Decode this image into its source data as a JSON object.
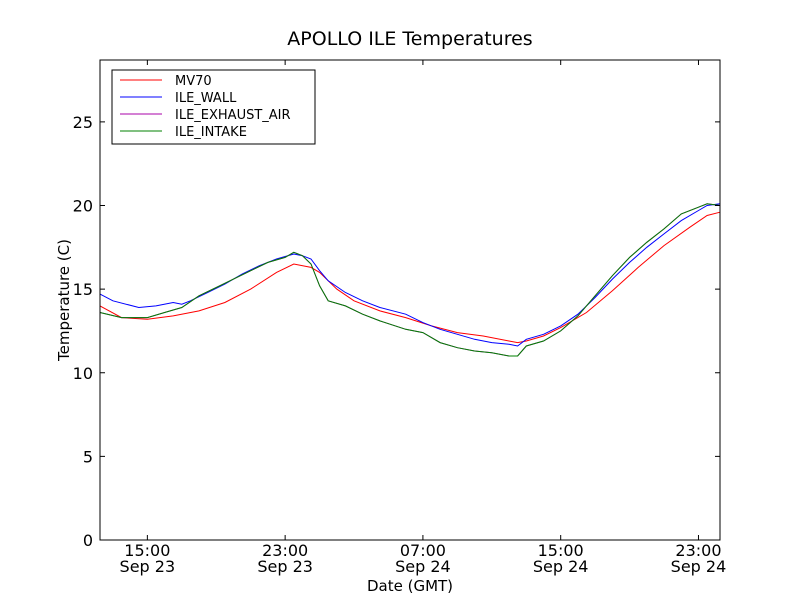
{
  "chart_data": {
    "type": "line",
    "title": "APOLLO ILE Temperatures",
    "xlabel": "Date (GMT)",
    "ylabel": "Temperature (C)",
    "xlim_hours": [
      12.25,
      48.25
    ],
    "ylim": [
      0,
      28.7
    ],
    "yticks": [
      0,
      5,
      10,
      15,
      20,
      25
    ],
    "xticks": [
      {
        "hour": 15,
        "time": "15:00",
        "date": "Sep 23"
      },
      {
        "hour": 23,
        "time": "23:00",
        "date": "Sep 23"
      },
      {
        "hour": 31,
        "time": "07:00",
        "date": "Sep 24"
      },
      {
        "hour": 39,
        "time": "15:00",
        "date": "Sep 24"
      },
      {
        "hour": 47,
        "time": "23:00",
        "date": "Sep 24"
      }
    ],
    "grid": false,
    "legend_position": "top-left",
    "series": [
      {
        "name": "MV70",
        "color": "#ff0000",
        "points": [
          [
            12.25,
            14.0
          ],
          [
            13.5,
            13.3
          ],
          [
            15.0,
            13.2
          ],
          [
            16.5,
            13.4
          ],
          [
            18.0,
            13.7
          ],
          [
            19.5,
            14.2
          ],
          [
            21.0,
            15.0
          ],
          [
            22.5,
            16.0
          ],
          [
            23.5,
            16.5
          ],
          [
            24.5,
            16.3
          ],
          [
            25.0,
            16.0
          ],
          [
            26.0,
            15.0
          ],
          [
            27.0,
            14.3
          ],
          [
            28.5,
            13.7
          ],
          [
            30.0,
            13.3
          ],
          [
            31.5,
            12.8
          ],
          [
            33.0,
            12.4
          ],
          [
            34.5,
            12.2
          ],
          [
            36.0,
            11.9
          ],
          [
            36.5,
            11.8
          ],
          [
            37.0,
            11.9
          ],
          [
            38.0,
            12.2
          ],
          [
            39.0,
            12.7
          ],
          [
            40.5,
            13.6
          ],
          [
            42.0,
            14.9
          ],
          [
            43.5,
            16.3
          ],
          [
            45.0,
            17.6
          ],
          [
            46.5,
            18.7
          ],
          [
            47.5,
            19.4
          ],
          [
            48.25,
            19.6
          ]
        ]
      },
      {
        "name": "ILE_WALL",
        "color": "#0000ff",
        "points": [
          [
            12.25,
            14.7
          ],
          [
            13.0,
            14.3
          ],
          [
            14.5,
            13.9
          ],
          [
            15.5,
            14.0
          ],
          [
            16.5,
            14.2
          ],
          [
            17.0,
            14.1
          ],
          [
            17.5,
            14.3
          ],
          [
            18.5,
            14.8
          ],
          [
            19.5,
            15.3
          ],
          [
            20.5,
            15.9
          ],
          [
            21.5,
            16.4
          ],
          [
            22.5,
            16.8
          ],
          [
            23.5,
            17.1
          ],
          [
            24.0,
            17.0
          ],
          [
            24.5,
            16.8
          ],
          [
            25.0,
            16.1
          ],
          [
            25.5,
            15.5
          ],
          [
            26.5,
            14.8
          ],
          [
            27.5,
            14.3
          ],
          [
            28.5,
            13.9
          ],
          [
            30.0,
            13.5
          ],
          [
            31.0,
            13.0
          ],
          [
            32.0,
            12.6
          ],
          [
            33.0,
            12.3
          ],
          [
            34.0,
            12.0
          ],
          [
            35.0,
            11.8
          ],
          [
            36.0,
            11.7
          ],
          [
            36.5,
            11.6
          ],
          [
            37.0,
            12.0
          ],
          [
            38.0,
            12.3
          ],
          [
            39.0,
            12.8
          ],
          [
            40.0,
            13.5
          ],
          [
            41.0,
            14.5
          ],
          [
            42.0,
            15.6
          ],
          [
            43.0,
            16.6
          ],
          [
            44.0,
            17.5
          ],
          [
            45.0,
            18.3
          ],
          [
            46.0,
            19.1
          ],
          [
            47.0,
            19.7
          ],
          [
            47.5,
            20.0
          ],
          [
            48.25,
            20.1
          ]
        ]
      },
      {
        "name": "ILE_EXHAUST_AIR",
        "color": "#aa00aa",
        "points": [
          [
            12.25,
            13.6
          ],
          [
            13.5,
            13.3
          ],
          [
            15.0,
            13.3
          ],
          [
            16.0,
            13.6
          ],
          [
            17.0,
            13.9
          ],
          [
            18.0,
            14.6
          ],
          [
            19.0,
            15.1
          ],
          [
            20.0,
            15.6
          ],
          [
            21.0,
            16.1
          ],
          [
            22.0,
            16.6
          ],
          [
            23.0,
            16.9
          ],
          [
            23.5,
            17.2
          ],
          [
            24.0,
            17.0
          ],
          [
            24.5,
            16.5
          ],
          [
            25.0,
            15.2
          ],
          [
            25.5,
            14.3
          ],
          [
            26.5,
            14.0
          ],
          [
            27.5,
            13.5
          ],
          [
            28.5,
            13.1
          ],
          [
            30.0,
            12.6
          ],
          [
            31.0,
            12.4
          ],
          [
            32.0,
            11.8
          ],
          [
            33.0,
            11.5
          ],
          [
            34.0,
            11.3
          ],
          [
            35.0,
            11.2
          ],
          [
            36.0,
            11.0
          ],
          [
            36.5,
            11.0
          ],
          [
            37.0,
            11.6
          ],
          [
            38.0,
            11.9
          ],
          [
            39.0,
            12.5
          ],
          [
            40.0,
            13.4
          ],
          [
            41.0,
            14.6
          ],
          [
            42.0,
            15.8
          ],
          [
            43.0,
            16.9
          ],
          [
            44.0,
            17.8
          ],
          [
            45.0,
            18.6
          ],
          [
            46.0,
            19.5
          ],
          [
            47.0,
            19.9
          ],
          [
            47.5,
            20.1
          ],
          [
            48.25,
            20.0
          ]
        ]
      },
      {
        "name": "ILE_INTAKE",
        "color": "#008000",
        "points": [
          [
            12.25,
            13.6
          ],
          [
            13.5,
            13.3
          ],
          [
            15.0,
            13.3
          ],
          [
            16.0,
            13.6
          ],
          [
            17.0,
            13.9
          ],
          [
            18.0,
            14.6
          ],
          [
            19.0,
            15.1
          ],
          [
            20.0,
            15.6
          ],
          [
            21.0,
            16.1
          ],
          [
            22.0,
            16.6
          ],
          [
            23.0,
            16.9
          ],
          [
            23.5,
            17.2
          ],
          [
            24.0,
            17.0
          ],
          [
            24.5,
            16.5
          ],
          [
            25.0,
            15.2
          ],
          [
            25.5,
            14.3
          ],
          [
            26.5,
            14.0
          ],
          [
            27.5,
            13.5
          ],
          [
            28.5,
            13.1
          ],
          [
            30.0,
            12.6
          ],
          [
            31.0,
            12.4
          ],
          [
            32.0,
            11.8
          ],
          [
            33.0,
            11.5
          ],
          [
            34.0,
            11.3
          ],
          [
            35.0,
            11.2
          ],
          [
            36.0,
            11.0
          ],
          [
            36.5,
            11.0
          ],
          [
            37.0,
            11.6
          ],
          [
            38.0,
            11.9
          ],
          [
            39.0,
            12.5
          ],
          [
            40.0,
            13.4
          ],
          [
            41.0,
            14.6
          ],
          [
            42.0,
            15.8
          ],
          [
            43.0,
            16.9
          ],
          [
            44.0,
            17.8
          ],
          [
            45.0,
            18.6
          ],
          [
            46.0,
            19.5
          ],
          [
            47.0,
            19.9
          ],
          [
            47.5,
            20.1
          ],
          [
            48.25,
            20.0
          ]
        ]
      }
    ]
  }
}
